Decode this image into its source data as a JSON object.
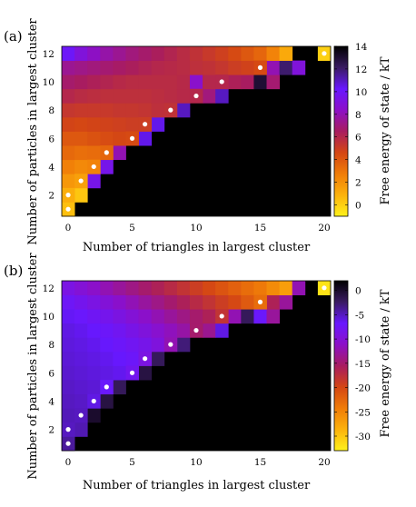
{
  "chart_data": [
    {
      "type": "heatmap",
      "panel_label": "(a)",
      "xlabel": "Number of triangles in largest cluster",
      "ylabel": "Number of particles in largest cluster",
      "colorbar_label": "Free energy of state / kT",
      "x_ticks": [
        "0",
        "5",
        "10",
        "15",
        "20"
      ],
      "y_ticks": [
        "2",
        "4",
        "6",
        "8",
        "10",
        "12"
      ],
      "cbar_ticks": [
        "14",
        "12",
        "10",
        "8",
        "6",
        "4",
        "2",
        "0"
      ],
      "xlim": [
        -0.5,
        20.5
      ],
      "ylim": [
        0.5,
        12.5
      ],
      "clim": [
        -1,
        14
      ],
      "colormap": [
        "#fff21a",
        "#fcb20c",
        "#f07c08",
        "#d44614",
        "#a81c60",
        "#8c10c8",
        "#6818ff",
        "#3a1b62",
        "#000000"
      ],
      "background_color": "#000000",
      "marker_color": "#ffffff",
      "ridge": [
        {
          "x": 0,
          "y": 1,
          "v": 0.5
        },
        {
          "x": 0,
          "y": 2,
          "v": 1.0
        },
        {
          "x": 1,
          "y": 3,
          "v": 1.5
        },
        {
          "x": 2,
          "y": 4,
          "v": 2.5
        },
        {
          "x": 3,
          "y": 5,
          "v": 3.5
        },
        {
          "x": 5,
          "y": 6,
          "v": 4.5
        },
        {
          "x": 6,
          "y": 7,
          "v": 5.0
        },
        {
          "x": 8,
          "y": 8,
          "v": 5.5
        },
        {
          "x": 10,
          "y": 9,
          "v": 6.0
        },
        {
          "x": 12,
          "y": 10,
          "v": 6.0
        },
        {
          "x": 15,
          "y": 11,
          "v": 4.5
        },
        {
          "x": 20,
          "y": 12,
          "v": 0.0
        }
      ],
      "cells": [
        {
          "x": 1,
          "y": 2,
          "v": 0.3
        },
        {
          "x": 0,
          "y": 3,
          "v": 1.8
        },
        {
          "x": 2,
          "y": 3,
          "v": 9.5
        },
        {
          "x": 0,
          "y": 4,
          "v": 2.6
        },
        {
          "x": 1,
          "y": 4,
          "v": 2.3
        },
        {
          "x": 3,
          "y": 4,
          "v": 9.5
        },
        {
          "x": 0,
          "y": 5,
          "v": 3.4
        },
        {
          "x": 1,
          "y": 5,
          "v": 3.2
        },
        {
          "x": 2,
          "y": 5,
          "v": 3.3
        },
        {
          "x": 4,
          "y": 5,
          "v": 8.0
        },
        {
          "x": 0,
          "y": 6,
          "v": 4.0
        },
        {
          "x": 1,
          "y": 6,
          "v": 4.0
        },
        {
          "x": 2,
          "y": 6,
          "v": 4.2
        },
        {
          "x": 3,
          "y": 6,
          "v": 4.4
        },
        {
          "x": 4,
          "y": 6,
          "v": 4.6
        },
        {
          "x": 6,
          "y": 6,
          "v": 10.5
        },
        {
          "x": 0,
          "y": 7,
          "v": 4.7
        },
        {
          "x": 1,
          "y": 7,
          "v": 4.6
        },
        {
          "x": 2,
          "y": 7,
          "v": 4.7
        },
        {
          "x": 3,
          "y": 7,
          "v": 4.8
        },
        {
          "x": 4,
          "y": 7,
          "v": 4.9
        },
        {
          "x": 5,
          "y": 7,
          "v": 5.0
        },
        {
          "x": 7,
          "y": 7,
          "v": 10.5
        },
        {
          "x": 0,
          "y": 8,
          "v": 5.3
        },
        {
          "x": 1,
          "y": 8,
          "v": 5.2
        },
        {
          "x": 2,
          "y": 8,
          "v": 5.2
        },
        {
          "x": 3,
          "y": 8,
          "v": 5.2
        },
        {
          "x": 4,
          "y": 8,
          "v": 5.3
        },
        {
          "x": 5,
          "y": 8,
          "v": 5.3
        },
        {
          "x": 6,
          "y": 8,
          "v": 5.4
        },
        {
          "x": 7,
          "y": 8,
          "v": 5.6
        },
        {
          "x": 9,
          "y": 8,
          "v": 11.0
        },
        {
          "x": 0,
          "y": 9,
          "v": 6.0
        },
        {
          "x": 1,
          "y": 9,
          "v": 5.8
        },
        {
          "x": 2,
          "y": 9,
          "v": 5.7
        },
        {
          "x": 3,
          "y": 9,
          "v": 5.6
        },
        {
          "x": 4,
          "y": 9,
          "v": 5.6
        },
        {
          "x": 5,
          "y": 9,
          "v": 5.6
        },
        {
          "x": 6,
          "y": 9,
          "v": 5.6
        },
        {
          "x": 7,
          "y": 9,
          "v": 5.7
        },
        {
          "x": 8,
          "y": 9,
          "v": 5.8
        },
        {
          "x": 9,
          "y": 9,
          "v": 5.9
        },
        {
          "x": 11,
          "y": 9,
          "v": 7.0
        },
        {
          "x": 12,
          "y": 9,
          "v": 11.0
        },
        {
          "x": 0,
          "y": 10,
          "v": 6.7
        },
        {
          "x": 1,
          "y": 10,
          "v": 6.5
        },
        {
          "x": 2,
          "y": 10,
          "v": 6.3
        },
        {
          "x": 3,
          "y": 10,
          "v": 6.1
        },
        {
          "x": 4,
          "y": 10,
          "v": 5.9
        },
        {
          "x": 5,
          "y": 10,
          "v": 5.8
        },
        {
          "x": 6,
          "y": 10,
          "v": 5.8
        },
        {
          "x": 7,
          "y": 10,
          "v": 5.8
        },
        {
          "x": 8,
          "y": 10,
          "v": 5.8
        },
        {
          "x": 9,
          "y": 10,
          "v": 5.9
        },
        {
          "x": 10,
          "y": 10,
          "v": 8.5
        },
        {
          "x": 11,
          "y": 10,
          "v": 6.0
        },
        {
          "x": 13,
          "y": 10,
          "v": 6.3
        },
        {
          "x": 14,
          "y": 10,
          "v": 6.5
        },
        {
          "x": 15,
          "y": 10,
          "v": 13.0
        },
        {
          "x": 16,
          "y": 10,
          "v": 6.8
        },
        {
          "x": 0,
          "y": 11,
          "v": 7.4
        },
        {
          "x": 1,
          "y": 11,
          "v": 7.2
        },
        {
          "x": 2,
          "y": 11,
          "v": 7.0
        },
        {
          "x": 3,
          "y": 11,
          "v": 6.8
        },
        {
          "x": 4,
          "y": 11,
          "v": 6.6
        },
        {
          "x": 5,
          "y": 11,
          "v": 6.4
        },
        {
          "x": 6,
          "y": 11,
          "v": 6.2
        },
        {
          "x": 7,
          "y": 11,
          "v": 6.0
        },
        {
          "x": 8,
          "y": 11,
          "v": 5.9
        },
        {
          "x": 9,
          "y": 11,
          "v": 5.8
        },
        {
          "x": 10,
          "y": 11,
          "v": 5.6
        },
        {
          "x": 11,
          "y": 11,
          "v": 5.5
        },
        {
          "x": 12,
          "y": 11,
          "v": 5.3
        },
        {
          "x": 13,
          "y": 11,
          "v": 5.0
        },
        {
          "x": 14,
          "y": 11,
          "v": 4.8
        },
        {
          "x": 16,
          "y": 11,
          "v": 8.0
        },
        {
          "x": 17,
          "y": 11,
          "v": 12.0
        },
        {
          "x": 18,
          "y": 11,
          "v": 9.0
        },
        {
          "x": 0,
          "y": 12,
          "v": 10.0
        },
        {
          "x": 1,
          "y": 12,
          "v": 9.0
        },
        {
          "x": 2,
          "y": 12,
          "v": 8.3
        },
        {
          "x": 3,
          "y": 12,
          "v": 7.8
        },
        {
          "x": 4,
          "y": 12,
          "v": 7.4
        },
        {
          "x": 5,
          "y": 12,
          "v": 7.0
        },
        {
          "x": 6,
          "y": 12,
          "v": 6.7
        },
        {
          "x": 7,
          "y": 12,
          "v": 6.4
        },
        {
          "x": 8,
          "y": 12,
          "v": 6.1
        },
        {
          "x": 9,
          "y": 12,
          "v": 5.8
        },
        {
          "x": 10,
          "y": 12,
          "v": 5.5
        },
        {
          "x": 11,
          "y": 12,
          "v": 5.2
        },
        {
          "x": 12,
          "y": 12,
          "v": 4.9
        },
        {
          "x": 13,
          "y": 12,
          "v": 4.5
        },
        {
          "x": 14,
          "y": 12,
          "v": 4.0
        },
        {
          "x": 15,
          "y": 12,
          "v": 3.5
        },
        {
          "x": 16,
          "y": 12,
          "v": 2.5
        },
        {
          "x": 17,
          "y": 12,
          "v": 1.2
        }
      ]
    },
    {
      "type": "heatmap",
      "panel_label": "(b)",
      "xlabel": "Number of triangles in largest cluster",
      "ylabel": "Number of particles in largest cluster",
      "colorbar_label": "Free energy of state / kT",
      "x_ticks": [
        "0",
        "5",
        "10",
        "15",
        "20"
      ],
      "y_ticks": [
        "2",
        "4",
        "6",
        "8",
        "10",
        "12"
      ],
      "cbar_ticks": [
        "0",
        "-5",
        "-10",
        "-15",
        "-20",
        "-25",
        "-30"
      ],
      "xlim": [
        -0.5,
        20.5
      ],
      "ylim": [
        0.5,
        12.5
      ],
      "clim": [
        -33,
        2
      ],
      "colormap": [
        "#fff21a",
        "#fcb20c",
        "#f07c08",
        "#d44614",
        "#a81c60",
        "#8c10c8",
        "#6818ff",
        "#3a1b62",
        "#000000"
      ],
      "background_color": "#000000",
      "marker_color": "#ffffff",
      "ridge": [
        {
          "x": 0,
          "y": 1,
          "v": -4.0
        },
        {
          "x": 0,
          "y": 2,
          "v": -5.0
        },
        {
          "x": 1,
          "y": 3,
          "v": -5.0
        },
        {
          "x": 2,
          "y": 4,
          "v": -6.0
        },
        {
          "x": 3,
          "y": 5,
          "v": -7.0
        },
        {
          "x": 5,
          "y": 6,
          "v": -8.0
        },
        {
          "x": 6,
          "y": 7,
          "v": -9.0
        },
        {
          "x": 8,
          "y": 8,
          "v": -12.0
        },
        {
          "x": 10,
          "y": 9,
          "v": -15.0
        },
        {
          "x": 12,
          "y": 10,
          "v": -18.0
        },
        {
          "x": 15,
          "y": 11,
          "v": -23.0
        },
        {
          "x": 20,
          "y": 12,
          "v": -32.0
        }
      ],
      "cells": [
        {
          "x": 1,
          "y": 2,
          "v": -4.6
        },
        {
          "x": 0,
          "y": 3,
          "v": -4.8
        },
        {
          "x": 2,
          "y": 3,
          "v": 0.0
        },
        {
          "x": 0,
          "y": 4,
          "v": -5.0
        },
        {
          "x": 1,
          "y": 4,
          "v": -5.2
        },
        {
          "x": 3,
          "y": 4,
          "v": -1.0
        },
        {
          "x": 0,
          "y": 5,
          "v": -5.2
        },
        {
          "x": 1,
          "y": 5,
          "v": -5.4
        },
        {
          "x": 2,
          "y": 5,
          "v": -5.6
        },
        {
          "x": 4,
          "y": 5,
          "v": -2.0
        },
        {
          "x": 0,
          "y": 6,
          "v": -5.4
        },
        {
          "x": 1,
          "y": 6,
          "v": -5.6
        },
        {
          "x": 2,
          "y": 6,
          "v": -5.8
        },
        {
          "x": 3,
          "y": 6,
          "v": -6.0
        },
        {
          "x": 4,
          "y": 6,
          "v": -6.3
        },
        {
          "x": 6,
          "y": 6,
          "v": -1.0
        },
        {
          "x": 0,
          "y": 7,
          "v": -5.6
        },
        {
          "x": 1,
          "y": 7,
          "v": -5.8
        },
        {
          "x": 2,
          "y": 7,
          "v": -6.0
        },
        {
          "x": 3,
          "y": 7,
          "v": -6.3
        },
        {
          "x": 4,
          "y": 7,
          "v": -6.7
        },
        {
          "x": 5,
          "y": 7,
          "v": -7.2
        },
        {
          "x": 7,
          "y": 7,
          "v": -2.0
        },
        {
          "x": 0,
          "y": 8,
          "v": -5.8
        },
        {
          "x": 1,
          "y": 8,
          "v": -6.0
        },
        {
          "x": 2,
          "y": 8,
          "v": -6.3
        },
        {
          "x": 3,
          "y": 8,
          "v": -6.7
        },
        {
          "x": 4,
          "y": 8,
          "v": -7.2
        },
        {
          "x": 5,
          "y": 8,
          "v": -7.8
        },
        {
          "x": 6,
          "y": 8,
          "v": -8.5
        },
        {
          "x": 7,
          "y": 8,
          "v": -9.5
        },
        {
          "x": 9,
          "y": 8,
          "v": -3.0
        },
        {
          "x": 0,
          "y": 9,
          "v": -6.0
        },
        {
          "x": 1,
          "y": 9,
          "v": -6.3
        },
        {
          "x": 2,
          "y": 9,
          "v": -6.7
        },
        {
          "x": 3,
          "y": 9,
          "v": -7.2
        },
        {
          "x": 4,
          "y": 9,
          "v": -7.9
        },
        {
          "x": 5,
          "y": 9,
          "v": -8.7
        },
        {
          "x": 6,
          "y": 9,
          "v": -9.6
        },
        {
          "x": 7,
          "y": 9,
          "v": -10.6
        },
        {
          "x": 8,
          "y": 9,
          "v": -11.6
        },
        {
          "x": 9,
          "y": 9,
          "v": -12.6
        },
        {
          "x": 11,
          "y": 9,
          "v": -13.5
        },
        {
          "x": 12,
          "y": 9,
          "v": -6.0
        },
        {
          "x": 0,
          "y": 10,
          "v": -6.5
        },
        {
          "x": 1,
          "y": 10,
          "v": -7.0
        },
        {
          "x": 2,
          "y": 10,
          "v": -7.6
        },
        {
          "x": 3,
          "y": 10,
          "v": -8.3
        },
        {
          "x": 4,
          "y": 10,
          "v": -9.1
        },
        {
          "x": 5,
          "y": 10,
          "v": -10.0
        },
        {
          "x": 6,
          "y": 10,
          "v": -11.0
        },
        {
          "x": 7,
          "y": 10,
          "v": -12.0
        },
        {
          "x": 8,
          "y": 10,
          "v": -13.0
        },
        {
          "x": 9,
          "y": 10,
          "v": -14.0
        },
        {
          "x": 10,
          "y": 10,
          "v": -15.0
        },
        {
          "x": 11,
          "y": 10,
          "v": -16.0
        },
        {
          "x": 13,
          "y": 10,
          "v": -12.0
        },
        {
          "x": 14,
          "y": 10,
          "v": -2.0
        },
        {
          "x": 15,
          "y": 10,
          "v": -7.0
        },
        {
          "x": 16,
          "y": 10,
          "v": -13.0
        },
        {
          "x": 0,
          "y": 11,
          "v": -7.5
        },
        {
          "x": 1,
          "y": 11,
          "v": -8.2
        },
        {
          "x": 2,
          "y": 11,
          "v": -9.0
        },
        {
          "x": 3,
          "y": 11,
          "v": -9.9
        },
        {
          "x": 4,
          "y": 11,
          "v": -10.9
        },
        {
          "x": 5,
          "y": 11,
          "v": -11.9
        },
        {
          "x": 6,
          "y": 11,
          "v": -12.9
        },
        {
          "x": 7,
          "y": 11,
          "v": -13.9
        },
        {
          "x": 8,
          "y": 11,
          "v": -14.9
        },
        {
          "x": 9,
          "y": 11,
          "v": -15.9
        },
        {
          "x": 10,
          "y": 11,
          "v": -17.0
        },
        {
          "x": 11,
          "y": 11,
          "v": -18.0
        },
        {
          "x": 12,
          "y": 11,
          "v": -19.0
        },
        {
          "x": 13,
          "y": 11,
          "v": -20.0
        },
        {
          "x": 14,
          "y": 11,
          "v": -21.5
        },
        {
          "x": 16,
          "y": 11,
          "v": -16.0
        },
        {
          "x": 17,
          "y": 11,
          "v": -13.0
        },
        {
          "x": 0,
          "y": 12,
          "v": -9.0
        },
        {
          "x": 1,
          "y": 12,
          "v": -10.0
        },
        {
          "x": 2,
          "y": 12,
          "v": -11.0
        },
        {
          "x": 3,
          "y": 12,
          "v": -12.0
        },
        {
          "x": 4,
          "y": 12,
          "v": -13.0
        },
        {
          "x": 5,
          "y": 12,
          "v": -14.0
        },
        {
          "x": 6,
          "y": 12,
          "v": -15.0
        },
        {
          "x": 7,
          "y": 12,
          "v": -16.0
        },
        {
          "x": 8,
          "y": 12,
          "v": -17.0
        },
        {
          "x": 9,
          "y": 12,
          "v": -18.0
        },
        {
          "x": 10,
          "y": 12,
          "v": -19.0
        },
        {
          "x": 11,
          "y": 12,
          "v": -20.0
        },
        {
          "x": 12,
          "y": 12,
          "v": -21.0
        },
        {
          "x": 13,
          "y": 12,
          "v": -22.0
        },
        {
          "x": 14,
          "y": 12,
          "v": -23.0
        },
        {
          "x": 15,
          "y": 12,
          "v": -24.0
        },
        {
          "x": 16,
          "y": 12,
          "v": -25.5
        },
        {
          "x": 17,
          "y": 12,
          "v": -27.0
        },
        {
          "x": 18,
          "y": 12,
          "v": -12.0
        }
      ]
    }
  ]
}
